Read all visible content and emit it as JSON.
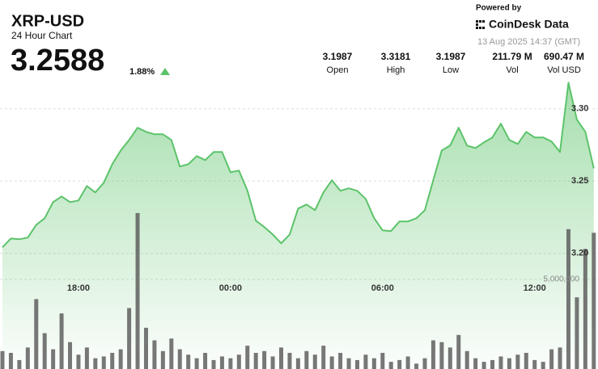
{
  "header": {
    "title": "XRP-USD",
    "subtitle": "24 Hour Chart",
    "price": 3.2588,
    "change": "1.88%"
  },
  "branding": {
    "powered_by": "Powered by",
    "brand": "CoinDesk Data",
    "timestamp": "13 Aug 2025 14:37 (GMT)"
  },
  "stats": [
    {
      "value": 3.1987,
      "label": "Open"
    },
    {
      "value": 3.3181,
      "label": "High"
    },
    {
      "value": 3.1987,
      "label": "Low"
    },
    {
      "value": "211.79 M",
      "label": "Vol"
    },
    {
      "value": "690.47 M",
      "label": "Vol USD"
    }
  ],
  "chart_data": {
    "type": "line",
    "categories": [
      null,
      null,
      null,
      null,
      null,
      null,
      null,
      null,
      null,
      "18:00",
      null,
      null,
      null,
      null,
      null,
      null,
      null,
      null,
      null,
      null,
      null,
      null,
      null,
      null,
      null,
      null,
      null,
      "00:00",
      null,
      null,
      null,
      null,
      null,
      null,
      null,
      null,
      null,
      null,
      null,
      null,
      null,
      null,
      null,
      null,
      null,
      "06:00",
      null,
      null,
      null,
      null,
      null,
      null,
      null,
      null,
      null,
      null,
      null,
      null,
      null,
      null,
      null,
      null,
      null,
      "12:00",
      null,
      null,
      null,
      null,
      null,
      null,
      null
    ],
    "values": [
      3.2042,
      3.2103,
      3.2098,
      3.2109,
      3.2198,
      3.2243,
      3.2355,
      3.2394,
      3.2355,
      3.2366,
      3.2466,
      3.2422,
      3.2489,
      3.2617,
      3.2712,
      3.2785,
      3.2869,
      3.2841,
      3.2824,
      3.2824,
      3.2785,
      3.2601,
      3.2617,
      3.2673,
      3.2645,
      3.2701,
      3.2701,
      3.2561,
      3.2573,
      3.2433,
      3.2226,
      3.2182,
      3.2131,
      3.207,
      3.2131,
      3.231,
      3.2338,
      3.2299,
      3.2422,
      3.2506,
      3.2433,
      3.245,
      3.2433,
      3.2377,
      3.2243,
      3.2159,
      3.2154,
      3.2221,
      3.2221,
      3.2243,
      3.2299,
      3.2506,
      3.2712,
      3.2746,
      3.2869,
      3.2746,
      3.2729,
      3.2768,
      3.2802,
      3.2897,
      3.2785,
      3.2757,
      3.2841,
      3.2802,
      3.2802,
      3.2774,
      3.2701,
      3.3181,
      3.2925,
      3.2841,
      3.2588
    ],
    "color": "#5cc36a",
    "ylim": [
      3.12,
      3.32
    ],
    "yticks": [
      {
        "value": 3.2,
        "label": "3.20"
      },
      3.25,
      {
        "value": 3.3,
        "label": "3.30"
      }
    ],
    "volume": {
      "color": "#5f5f5f",
      "axis": "y2",
      "values": [
        1000000,
        900000,
        500000,
        1200000,
        3900000,
        2000000,
        1100000,
        3100000,
        1500000,
        800000,
        1200000,
        600000,
        700000,
        900000,
        1100000,
        3400000,
        8700000,
        2300000,
        1600000,
        1000000,
        1700000,
        1100000,
        800000,
        600000,
        900000,
        500000,
        700000,
        600000,
        800000,
        1300000,
        900000,
        1000000,
        700000,
        1200000,
        900000,
        600000,
        1000000,
        800000,
        1300000,
        700000,
        900000,
        600000,
        500000,
        800000,
        600000,
        900000,
        400000,
        500000,
        700000,
        300000,
        600000,
        1600000,
        1500000,
        1200000,
        1900000,
        1000000,
        600000,
        400000,
        500000,
        700000,
        600000,
        800000,
        900000,
        500000,
        400000,
        1100000,
        1200000,
        7800000,
        4000000,
        6700000,
        7600000
      ]
    },
    "y2lim": [
      0,
      10000000
    ],
    "y2ticks": [
      {
        "value": 5000000,
        "label": "5,000,000"
      }
    ],
    "grid": true
  }
}
